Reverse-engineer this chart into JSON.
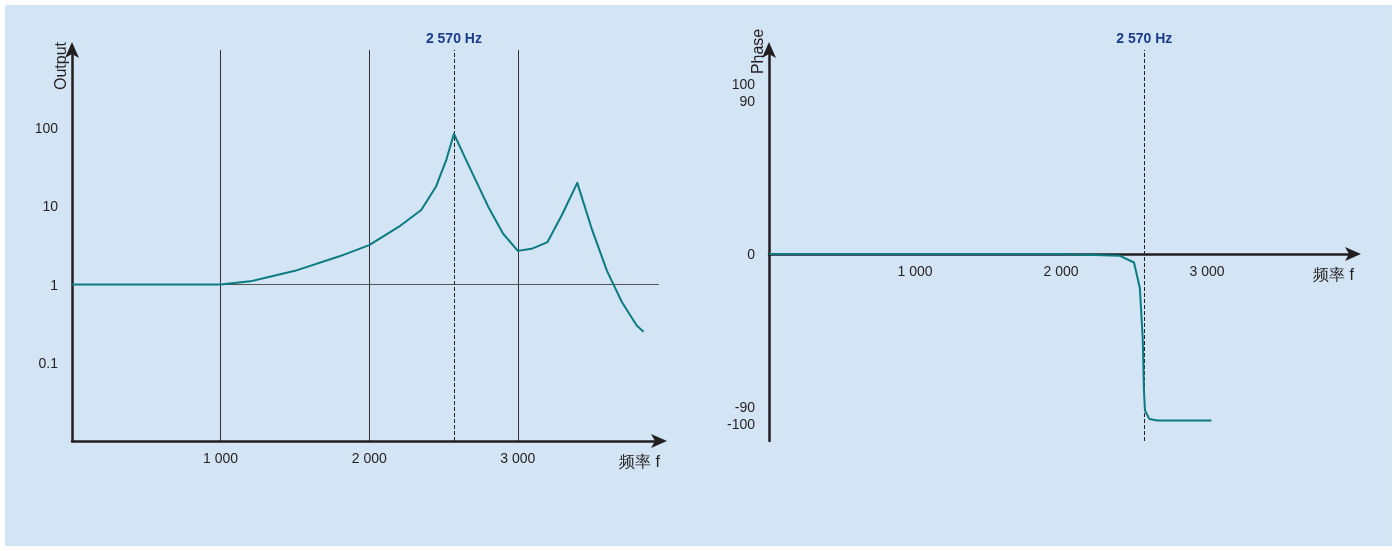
{
  "chart_data": [
    {
      "type": "line",
      "xlabel": "频率 f",
      "ylabel": "Output",
      "log": "y",
      "grid": "x",
      "line_style": "solid",
      "marker": "none",
      "xlim": [
        0,
        3950
      ],
      "xticks": [
        {
          "value": 1000,
          "label": "1 000"
        },
        {
          "value": 2000,
          "label": "2 000"
        },
        {
          "value": 3000,
          "label": "3 000"
        }
      ],
      "ylim": [
        0.01,
        1000
      ],
      "yticks": [
        0.1,
        1,
        10,
        100
      ],
      "series": [
        {
          "color": "#0a7b80",
          "x": [
            0,
            500,
            1000,
            1200,
            1500,
            1800,
            2000,
            2200,
            2350,
            2450,
            2520,
            2570,
            2650,
            2800,
            2900,
            3000,
            3100,
            3200,
            3300,
            3400,
            3500,
            3600,
            3700,
            3800,
            3846
          ],
          "values": [
            1,
            1,
            1,
            1.1,
            1.5,
            2.3,
            3.2,
            5.5,
            9,
            18,
            40,
            85,
            40,
            10,
            4.5,
            2.7,
            2.9,
            3.5,
            8,
            20,
            5,
            1.5,
            0.6,
            0.3,
            0.25
          ]
        }
      ],
      "ref_lines": [
        {
          "axis": "y",
          "value": 1,
          "label": null,
          "color": "#555555",
          "line_style": "solid"
        },
        {
          "axis": "x",
          "value": 2570,
          "label": "2 570 Hz",
          "color": "#222222",
          "line_style": "dashed"
        }
      ]
    },
    {
      "type": "line",
      "xlabel": "频率 f",
      "ylabel": "Phase",
      "grid": false,
      "line_style": "solid",
      "marker": "none",
      "xlim": [
        0,
        4000
      ],
      "xticks": [
        {
          "value": 1000,
          "label": "1 000"
        },
        {
          "value": 2000,
          "label": "2 000"
        },
        {
          "value": 3000,
          "label": "3 000"
        }
      ],
      "ylim": [
        -110,
        120
      ],
      "yticks": [
        -100,
        -90,
        0,
        90,
        100
      ],
      "series": [
        {
          "color": "#0a7b80",
          "x": [
            0,
            1000,
            2000,
            2400,
            2500,
            2540,
            2560,
            2568,
            2575,
            2605,
            2660,
            3030
          ],
          "values": [
            0,
            0,
            0,
            -1,
            -5,
            -20,
            -50,
            -80,
            -92,
            -97,
            -98,
            -98
          ]
        }
      ],
      "ref_lines": [
        {
          "axis": "x",
          "value": 2570,
          "label": "2 570 Hz",
          "color": "#222222",
          "line_style": "dashed"
        }
      ]
    }
  ]
}
